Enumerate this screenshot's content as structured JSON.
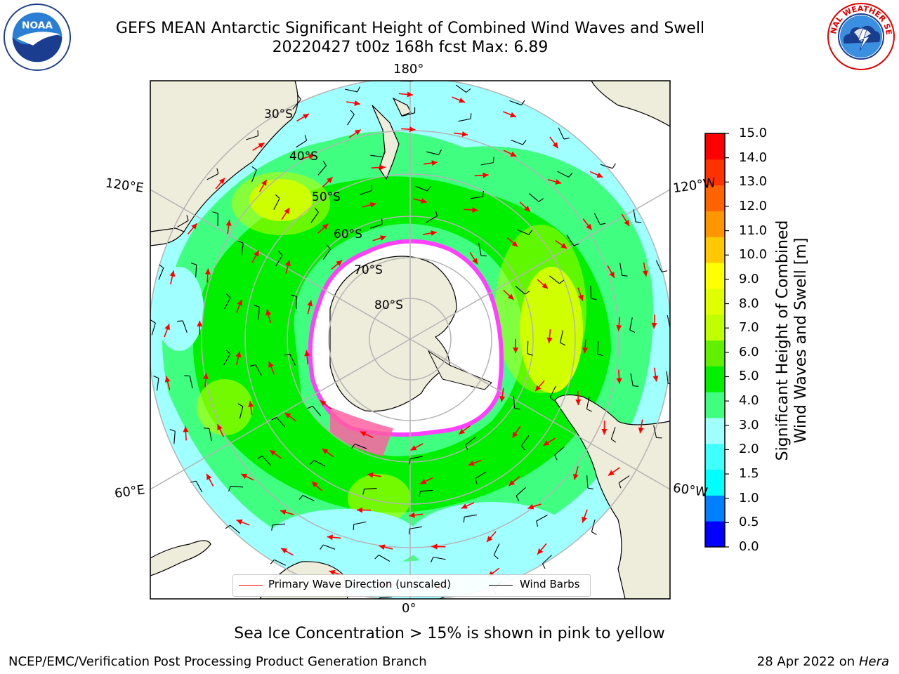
{
  "header": {
    "title_line1": "GEFS MEAN Antarctic Significant Height of Combined Wind Waves and Swell",
    "title_line2": "20220427 t00z 168h fcst   Max: 6.89"
  },
  "logos": {
    "left": {
      "icon": "noaa-logo",
      "text": "NOAA"
    },
    "right": {
      "icon": "national-weather-service-logo",
      "ring_text": "NATIONAL WEATHER SERVICE"
    }
  },
  "map": {
    "projection": "south-polar-stereographic",
    "longitude_labels": {
      "top": "180°",
      "bottom": "0°",
      "upper_left": "120°E",
      "lower_left": "60°E",
      "upper_right": "120°W",
      "lower_right": "60°W"
    },
    "latitude_labels": [
      "30°S",
      "40°S",
      "50°S",
      "60°S",
      "70°S",
      "80°S"
    ],
    "sea_ice_note_colors": [
      "#ff00ff",
      "#ffb000",
      "#ffffff"
    ]
  },
  "colorbar": {
    "title_line1": "Significant Height of Combined",
    "title_line2": "Wind Waves and Swell [m]",
    "ticks": [
      "0.0",
      "0.5",
      "1.0",
      "1.5",
      "2.0",
      "3.0",
      "4.0",
      "5.0",
      "6.0",
      "7.0",
      "8.0",
      "9.0",
      "10.0",
      "11.0",
      "12.0",
      "13.0",
      "14.0",
      "15.0"
    ],
    "colors": [
      "#0000ff",
      "#0080ff",
      "#00ffff",
      "#40ffff",
      "#a0ffff",
      "#40ff80",
      "#00f000",
      "#60f000",
      "#c0ff00",
      "#e0ff00",
      "#ffff00",
      "#ffc800",
      "#ff9600",
      "#ff6400",
      "#ff3200",
      "#ff0000"
    ]
  },
  "legend": {
    "primary_wave": {
      "label": "Primary Wave Direction (unscaled)",
      "color": "#ff0000"
    },
    "wind_barbs": {
      "label": "Wind Barbs",
      "color": "#000000"
    }
  },
  "caption": "Sea Ice Concentration > 15% is shown in pink to yellow",
  "footer": {
    "left": "NCEP/EMC/Verification Post Processing Product Generation Branch",
    "right_prefix": "28 Apr 2022 on ",
    "right_host": "Hera"
  }
}
